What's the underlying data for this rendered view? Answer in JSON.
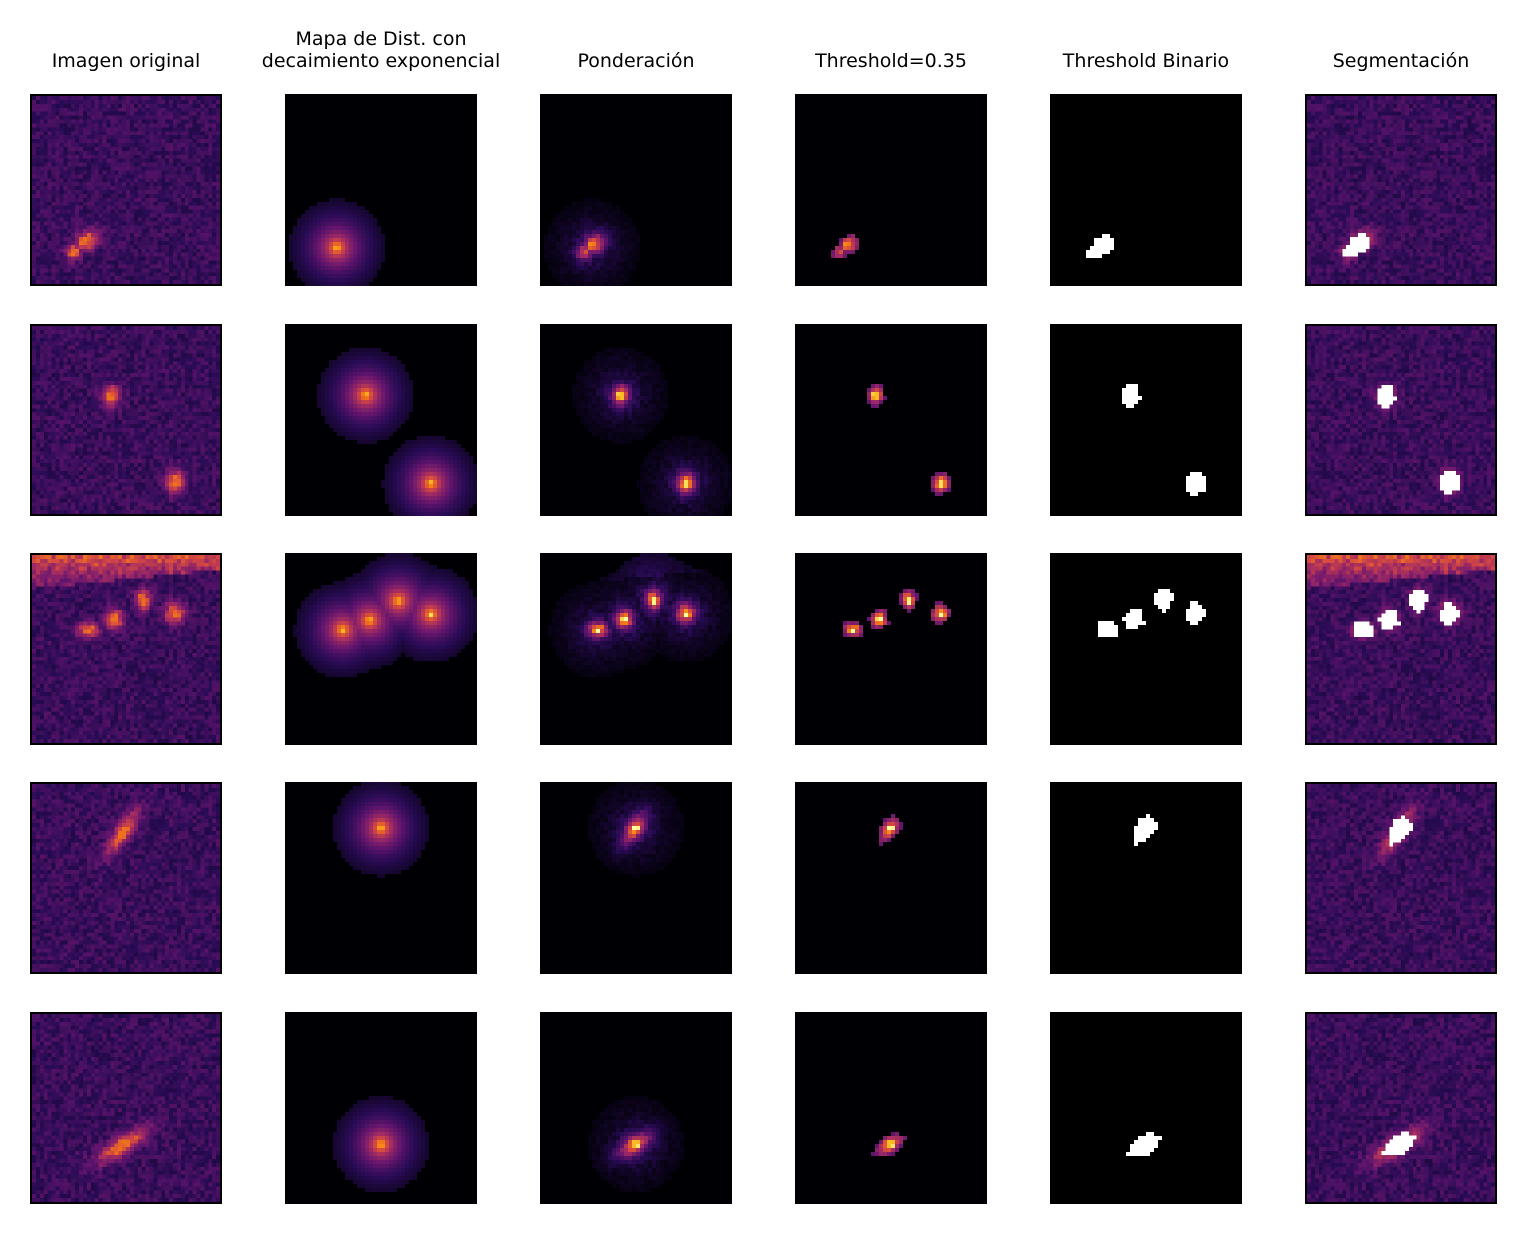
{
  "figure": {
    "column_titles": [
      "Imagen original",
      "Mapa de Dist. con\ndecaimiento exponencial",
      "Ponderación",
      "Threshold=0.35",
      "Threshold Binario",
      "Segmentación"
    ],
    "rows": 5,
    "colormap": "inferno",
    "threshold": 0.35,
    "mask_color": "#ffffff",
    "background_color": "#000000"
  }
}
